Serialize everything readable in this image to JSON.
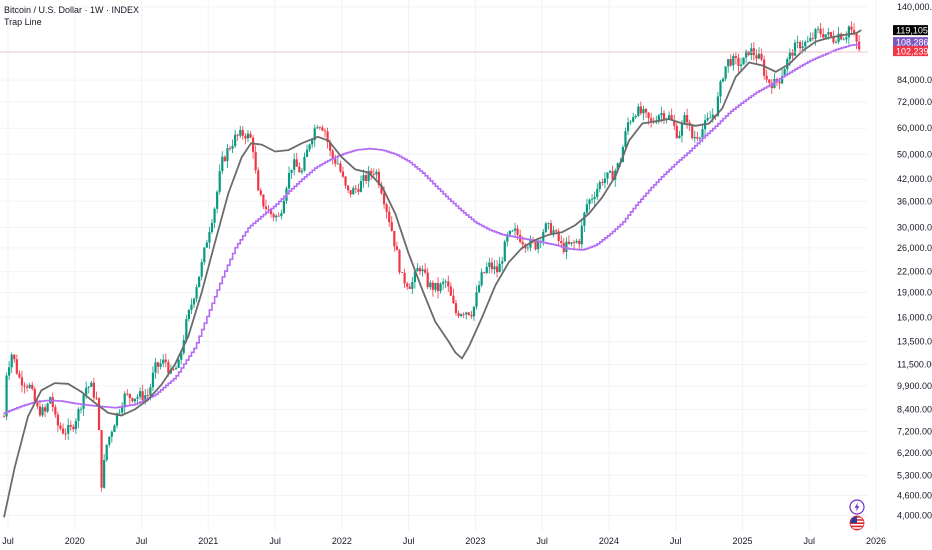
{
  "legend": {
    "title": "Bitcoin / U.S. Dollar · 1W · INDEX",
    "indicator": "Trap Line"
  },
  "price_tags": [
    {
      "label": "119,105.11",
      "value": 119105.11,
      "color": "#000000"
    },
    {
      "label": "108,286.74",
      "value": 108286.74,
      "color": "#7e57c2"
    },
    {
      "label": "102,239.00",
      "value": 102239.0,
      "color": "#f23645"
    }
  ],
  "colors": {
    "up": "#089981",
    "down": "#f23645",
    "trap_line": "#b36bf5",
    "smooth_line": "#6b6b6b",
    "grid": "#f0f3fa"
  },
  "icons": [
    "lightning-icon",
    "us-flag-icon"
  ],
  "chart_data": {
    "type": "candlestick",
    "title": "Bitcoin / U.S. Dollar · 1W · INDEX",
    "y_scale": "log",
    "ylim": [
      3850,
      141000
    ],
    "y_ticks": [
      {
        "v": 140000,
        "label": "140,000.00"
      },
      {
        "v": 84000,
        "label": "84,000.00"
      },
      {
        "v": 72000,
        "label": "72,000.00"
      },
      {
        "v": 60000,
        "label": "60,000.00"
      },
      {
        "v": 50000,
        "label": "50,000.00"
      },
      {
        "v": 42000,
        "label": "42,000.00"
      },
      {
        "v": 36000,
        "label": "36,000.00"
      },
      {
        "v": 30000,
        "label": "30,000.00"
      },
      {
        "v": 26000,
        "label": "26,000.00"
      },
      {
        "v": 22000,
        "label": "22,000.00"
      },
      {
        "v": 19000,
        "label": "19,000.00"
      },
      {
        "v": 16000,
        "label": "16,000.00"
      },
      {
        "v": 13500,
        "label": "13,500.00"
      },
      {
        "v": 11500,
        "label": "11,500.00"
      },
      {
        "v": 9900,
        "label": "9,900.00"
      },
      {
        "v": 8400,
        "label": "8,400.00"
      },
      {
        "v": 7200,
        "label": "7,200.00"
      },
      {
        "v": 6200,
        "label": "6,200.00"
      },
      {
        "v": 5300,
        "label": "5,300.00"
      },
      {
        "v": 4600,
        "label": "4,600.00"
      },
      {
        "v": 4000,
        "label": "4,000.00"
      }
    ],
    "x_ticks": [
      {
        "t": 2019.5,
        "label": "Jul"
      },
      {
        "t": 2020.0,
        "label": "2020"
      },
      {
        "t": 2020.5,
        "label": "Jul"
      },
      {
        "t": 2021.0,
        "label": "2021"
      },
      {
        "t": 2021.5,
        "label": "Jul"
      },
      {
        "t": 2022.0,
        "label": "2022"
      },
      {
        "t": 2022.5,
        "label": "Jul"
      },
      {
        "t": 2023.0,
        "label": "2023"
      },
      {
        "t": 2023.5,
        "label": "Jul"
      },
      {
        "t": 2024.0,
        "label": "2024"
      },
      {
        "t": 2024.5,
        "label": "Jul"
      },
      {
        "t": 2025.0,
        "label": "2025"
      },
      {
        "t": 2025.5,
        "label": "Jul"
      },
      {
        "t": 2026.0,
        "label": "2026"
      }
    ],
    "price_path": [
      [
        2019.47,
        8000
      ],
      [
        2019.49,
        11000
      ],
      [
        2019.53,
        12500
      ],
      [
        2019.58,
        10500
      ],
      [
        2019.66,
        9900
      ],
      [
        2019.72,
        8400
      ],
      [
        2019.78,
        8200
      ],
      [
        2019.82,
        9300
      ],
      [
        2019.86,
        7600
      ],
      [
        2019.92,
        7200
      ],
      [
        2019.97,
        7300
      ],
      [
        2020.03,
        8300
      ],
      [
        2020.08,
        9800
      ],
      [
        2020.12,
        9900
      ],
      [
        2020.17,
        8800
      ],
      [
        2020.2,
        5000
      ],
      [
        2020.24,
        6600
      ],
      [
        2020.3,
        7800
      ],
      [
        2020.37,
        9200
      ],
      [
        2020.45,
        9200
      ],
      [
        2020.55,
        9300
      ],
      [
        2020.6,
        11200
      ],
      [
        2020.68,
        11800
      ],
      [
        2020.72,
        10700
      ],
      [
        2020.78,
        11500
      ],
      [
        2020.83,
        15000
      ],
      [
        2020.88,
        18000
      ],
      [
        2020.95,
        23000
      ],
      [
        2021.0,
        29000
      ],
      [
        2021.05,
        35000
      ],
      [
        2021.1,
        47000
      ],
      [
        2021.15,
        52000
      ],
      [
        2021.2,
        56000
      ],
      [
        2021.27,
        58000
      ],
      [
        2021.33,
        55000
      ],
      [
        2021.37,
        38000
      ],
      [
        2021.42,
        35000
      ],
      [
        2021.47,
        33000
      ],
      [
        2021.53,
        32000
      ],
      [
        2021.58,
        40000
      ],
      [
        2021.63,
        47000
      ],
      [
        2021.7,
        44000
      ],
      [
        2021.76,
        55000
      ],
      [
        2021.82,
        63000
      ],
      [
        2021.87,
        60000
      ],
      [
        2021.92,
        49000
      ],
      [
        2021.97,
        47000
      ],
      [
        2022.04,
        38000
      ],
      [
        2022.1,
        39000
      ],
      [
        2022.17,
        42000
      ],
      [
        2022.25,
        45000
      ],
      [
        2022.3,
        39000
      ],
      [
        2022.37,
        30000
      ],
      [
        2022.45,
        21000
      ],
      [
        2022.52,
        20000
      ],
      [
        2022.58,
        23000
      ],
      [
        2022.65,
        20000
      ],
      [
        2022.72,
        19500
      ],
      [
        2022.78,
        20500
      ],
      [
        2022.85,
        16500
      ],
      [
        2022.92,
        16800
      ],
      [
        2022.98,
        16600
      ],
      [
        2023.04,
        21000
      ],
      [
        2023.1,
        23000
      ],
      [
        2023.17,
        22000
      ],
      [
        2023.24,
        28000
      ],
      [
        2023.3,
        29000
      ],
      [
        2023.37,
        27000
      ],
      [
        2023.45,
        26500
      ],
      [
        2023.52,
        30000
      ],
      [
        2023.58,
        29500
      ],
      [
        2023.65,
        26000
      ],
      [
        2023.72,
        26500
      ],
      [
        2023.78,
        27500
      ],
      [
        2023.83,
        35000
      ],
      [
        2023.88,
        37500
      ],
      [
        2023.95,
        42000
      ],
      [
        2024.02,
        43000
      ],
      [
        2024.08,
        47000
      ],
      [
        2024.14,
        62000
      ],
      [
        2024.2,
        68000
      ],
      [
        2024.26,
        66000
      ],
      [
        2024.32,
        62000
      ],
      [
        2024.38,
        67000
      ],
      [
        2024.45,
        65000
      ],
      [
        2024.52,
        57000
      ],
      [
        2024.58,
        66000
      ],
      [
        2024.62,
        56000
      ],
      [
        2024.68,
        58000
      ],
      [
        2024.74,
        63000
      ],
      [
        2024.8,
        68000
      ],
      [
        2024.86,
        90000
      ],
      [
        2024.9,
        97000
      ],
      [
        2024.95,
        95000
      ],
      [
        2025.0,
        94000
      ],
      [
        2025.05,
        104000
      ],
      [
        2025.1,
        100000
      ],
      [
        2025.14,
        96000
      ],
      [
        2025.18,
        84000
      ],
      [
        2025.24,
        82000
      ],
      [
        2025.28,
        85000
      ],
      [
        2025.33,
        95000
      ],
      [
        2025.38,
        104000
      ],
      [
        2025.43,
        108000
      ],
      [
        2025.5,
        109000
      ],
      [
        2025.56,
        118000
      ],
      [
        2025.62,
        116000
      ],
      [
        2025.68,
        112000
      ],
      [
        2025.72,
        116000
      ],
      [
        2025.77,
        114000
      ],
      [
        2025.8,
        123000
      ],
      [
        2025.84,
        112000
      ],
      [
        2025.87,
        105000
      ],
      [
        2025.89,
        102239
      ]
    ],
    "series": [
      {
        "name": "Trap Line",
        "color": "#b36bf5",
        "points": [
          [
            2019.47,
            8200
          ],
          [
            2019.6,
            8600
          ],
          [
            2019.7,
            8850
          ],
          [
            2019.8,
            8950
          ],
          [
            2019.9,
            8900
          ],
          [
            2020.0,
            8750
          ],
          [
            2020.15,
            8600
          ],
          [
            2020.3,
            8500
          ],
          [
            2020.45,
            8700
          ],
          [
            2020.6,
            9300
          ],
          [
            2020.75,
            10500
          ],
          [
            2020.9,
            13000
          ],
          [
            2021.0,
            16500
          ],
          [
            2021.1,
            21000
          ],
          [
            2021.2,
            26000
          ],
          [
            2021.3,
            30000
          ],
          [
            2021.4,
            32500
          ],
          [
            2021.5,
            35000
          ],
          [
            2021.6,
            38500
          ],
          [
            2021.7,
            42000
          ],
          [
            2021.8,
            45500
          ],
          [
            2021.9,
            48000
          ],
          [
            2022.0,
            50000
          ],
          [
            2022.1,
            51500
          ],
          [
            2022.2,
            52000
          ],
          [
            2022.3,
            51500
          ],
          [
            2022.4,
            50000
          ],
          [
            2022.5,
            47500
          ],
          [
            2022.6,
            44000
          ],
          [
            2022.7,
            40000
          ],
          [
            2022.8,
            36500
          ],
          [
            2022.9,
            33500
          ],
          [
            2023.0,
            31000
          ],
          [
            2023.1,
            29500
          ],
          [
            2023.2,
            28500
          ],
          [
            2023.3,
            28000
          ],
          [
            2023.4,
            27500
          ],
          [
            2023.5,
            27000
          ],
          [
            2023.6,
            26500
          ],
          [
            2023.7,
            25800
          ],
          [
            2023.8,
            25600
          ],
          [
            2023.9,
            26500
          ],
          [
            2024.0,
            28500
          ],
          [
            2024.1,
            31000
          ],
          [
            2024.2,
            35000
          ],
          [
            2024.3,
            39000
          ],
          [
            2024.4,
            43000
          ],
          [
            2024.5,
            47000
          ],
          [
            2024.6,
            51000
          ],
          [
            2024.7,
            56000
          ],
          [
            2024.8,
            61000
          ],
          [
            2024.9,
            67000
          ],
          [
            2025.0,
            72000
          ],
          [
            2025.1,
            77000
          ],
          [
            2025.2,
            81000
          ],
          [
            2025.3,
            86000
          ],
          [
            2025.4,
            91000
          ],
          [
            2025.5,
            96000
          ],
          [
            2025.6,
            100000
          ],
          [
            2025.7,
            104000
          ],
          [
            2025.8,
            107000
          ],
          [
            2025.89,
            108286.74
          ]
        ]
      },
      {
        "name": "",
        "color": "#6b6b6b",
        "points": [
          [
            2019.47,
            3950
          ],
          [
            2019.55,
            5600
          ],
          [
            2019.65,
            8000
          ],
          [
            2019.75,
            9600
          ],
          [
            2019.85,
            10100
          ],
          [
            2019.95,
            10050
          ],
          [
            2020.05,
            9500
          ],
          [
            2020.15,
            8800
          ],
          [
            2020.25,
            8200
          ],
          [
            2020.35,
            8050
          ],
          [
            2020.45,
            8400
          ],
          [
            2020.55,
            9000
          ],
          [
            2020.65,
            10000
          ],
          [
            2020.75,
            11500
          ],
          [
            2020.85,
            14000
          ],
          [
            2020.95,
            19000
          ],
          [
            2021.05,
            27000
          ],
          [
            2021.15,
            38000
          ],
          [
            2021.25,
            49000
          ],
          [
            2021.32,
            54000
          ],
          [
            2021.4,
            53500
          ],
          [
            2021.5,
            51000
          ],
          [
            2021.6,
            51500
          ],
          [
            2021.7,
            54000
          ],
          [
            2021.82,
            56500
          ],
          [
            2021.9,
            55000
          ],
          [
            2022.0,
            49000
          ],
          [
            2022.1,
            45000
          ],
          [
            2022.2,
            44000
          ],
          [
            2022.3,
            40000
          ],
          [
            2022.4,
            33000
          ],
          [
            2022.5,
            25000
          ],
          [
            2022.6,
            19500
          ],
          [
            2022.7,
            15500
          ],
          [
            2022.8,
            13500
          ],
          [
            2022.85,
            12500
          ],
          [
            2022.9,
            12000
          ],
          [
            2022.95,
            13000
          ],
          [
            2023.05,
            16000
          ],
          [
            2023.15,
            20000
          ],
          [
            2023.25,
            23500
          ],
          [
            2023.35,
            26000
          ],
          [
            2023.45,
            27500
          ],
          [
            2023.55,
            28500
          ],
          [
            2023.65,
            29000
          ],
          [
            2023.75,
            30500
          ],
          [
            2023.85,
            33000
          ],
          [
            2023.95,
            37000
          ],
          [
            2024.05,
            43000
          ],
          [
            2024.15,
            55000
          ],
          [
            2024.25,
            62000
          ],
          [
            2024.35,
            63000
          ],
          [
            2024.45,
            64000
          ],
          [
            2024.55,
            62000
          ],
          [
            2024.65,
            61000
          ],
          [
            2024.75,
            62000
          ],
          [
            2024.85,
            69000
          ],
          [
            2024.95,
            86000
          ],
          [
            2025.05,
            95000
          ],
          [
            2025.15,
            93000
          ],
          [
            2025.25,
            89000
          ],
          [
            2025.35,
            94000
          ],
          [
            2025.45,
            103000
          ],
          [
            2025.55,
            110000
          ],
          [
            2025.65,
            113000
          ],
          [
            2025.75,
            115000
          ],
          [
            2025.85,
            116500
          ],
          [
            2025.89,
            119105.11
          ]
        ]
      }
    ]
  }
}
